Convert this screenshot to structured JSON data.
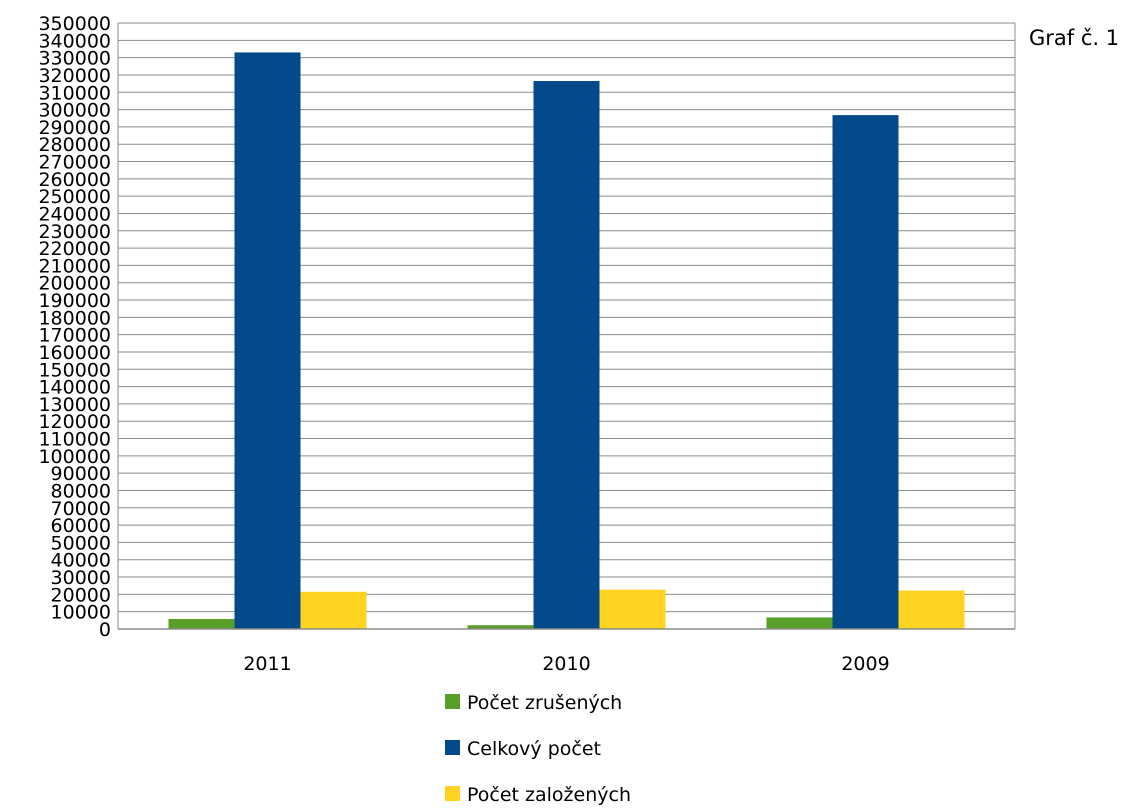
{
  "side_label": "Graf č. 1",
  "chart_data": {
    "type": "bar",
    "categories": [
      "2011",
      "2010",
      "2009"
    ],
    "series": [
      {
        "name": "Počet zrušených",
        "color": "#5a9e2a",
        "values": [
          5800,
          2200,
          6700
        ]
      },
      {
        "name": "Celkový počet",
        "color": "#044a8a",
        "values": [
          333000,
          316500,
          296800
        ]
      },
      {
        "name": "Počet založených",
        "color": "#ffd321",
        "values": [
          21500,
          22700,
          22200
        ]
      }
    ],
    "ylim": [
      0,
      350000
    ],
    "ytick_step": 10000,
    "ytick_labels": [
      "0",
      "10000",
      "20000",
      "30000",
      "40000",
      "50000",
      "60000",
      "70000",
      "80000",
      "90000",
      "100000",
      "110000",
      "120000",
      "130000",
      "140000",
      "150000",
      "160000",
      "170000",
      "180000",
      "190000",
      "200000",
      "210000",
      "220000",
      "230000",
      "240000",
      "250000",
      "260000",
      "270000",
      "280000",
      "290000",
      "300000",
      "310000",
      "320000",
      "330000",
      "340000",
      "350000"
    ],
    "grid": true,
    "legend_position": "bottom",
    "title": "",
    "xlabel": "",
    "ylabel": ""
  }
}
